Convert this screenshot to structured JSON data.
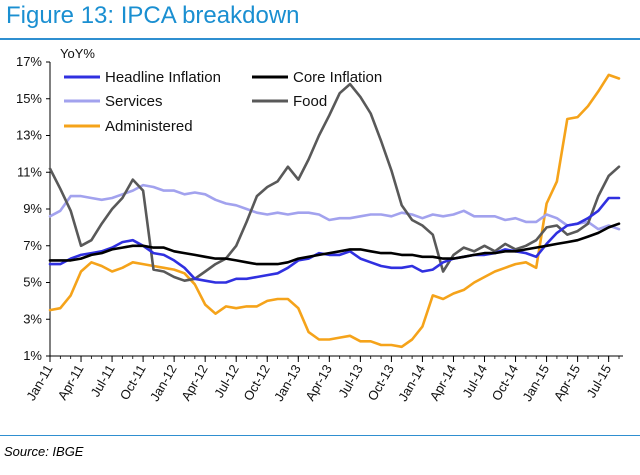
{
  "figure": {
    "title": "Figure 13: IPCA breakdown",
    "source": "Source: IBGE"
  },
  "chart_data": {
    "type": "line",
    "ylabel": "YoY%",
    "ylim": [
      1,
      17
    ],
    "yticks": [
      1,
      3,
      5,
      7,
      9,
      11,
      13,
      15,
      17
    ],
    "ytick_labels": [
      "1%",
      "3%",
      "5%",
      "7%",
      "9%",
      "11%",
      "13%",
      "15%",
      "17%"
    ],
    "x_start": "Jan-11",
    "n_months": 56,
    "x_tick_labels": [
      "Jan-11",
      "Apr-11",
      "Jul-11",
      "Oct-11",
      "Jan-12",
      "Apr-12",
      "Jul-12",
      "Oct-12",
      "Jan-13",
      "Apr-13",
      "Jul-13",
      "Oct-13",
      "Jan-14",
      "Apr-14",
      "Jul-14",
      "Oct-14",
      "Jan-15",
      "Apr-15",
      "Jul-15"
    ],
    "series": [
      {
        "name": "Headline Inflation",
        "color": "#3030e0",
        "values": [
          6.0,
          6.0,
          6.3,
          6.5,
          6.6,
          6.7,
          6.9,
          7.2,
          7.3,
          7.0,
          6.6,
          6.5,
          6.2,
          5.8,
          5.2,
          5.1,
          5.0,
          5.0,
          5.2,
          5.2,
          5.3,
          5.4,
          5.5,
          5.8,
          6.2,
          6.3,
          6.6,
          6.5,
          6.5,
          6.7,
          6.3,
          6.1,
          5.9,
          5.8,
          5.8,
          5.9,
          5.6,
          5.7,
          6.1,
          6.3,
          6.4,
          6.5,
          6.5,
          6.6,
          6.8,
          6.7,
          6.6,
          6.4,
          7.1,
          7.7,
          8.1,
          8.2,
          8.5,
          8.9,
          9.6,
          9.6
        ]
      },
      {
        "name": "Core Inflation",
        "color": "#000000",
        "values": [
          6.2,
          6.2,
          6.2,
          6.3,
          6.5,
          6.6,
          6.8,
          6.9,
          7.0,
          7.0,
          6.9,
          6.9,
          6.7,
          6.6,
          6.5,
          6.4,
          6.3,
          6.3,
          6.2,
          6.1,
          6.0,
          6.0,
          6.0,
          6.1,
          6.3,
          6.4,
          6.5,
          6.6,
          6.7,
          6.8,
          6.8,
          6.7,
          6.6,
          6.6,
          6.5,
          6.5,
          6.4,
          6.4,
          6.3,
          6.3,
          6.4,
          6.5,
          6.6,
          6.6,
          6.7,
          6.7,
          6.8,
          6.9,
          7.0,
          7.1,
          7.2,
          7.3,
          7.5,
          7.7,
          8.0,
          8.2
        ]
      },
      {
        "name": "Services",
        "color": "#a2a2ee",
        "values": [
          8.6,
          8.9,
          9.7,
          9.7,
          9.6,
          9.5,
          9.6,
          9.8,
          10.0,
          10.3,
          10.2,
          10.0,
          10.0,
          9.8,
          9.9,
          9.8,
          9.5,
          9.3,
          9.2,
          9.0,
          8.8,
          8.7,
          8.8,
          8.7,
          8.8,
          8.8,
          8.7,
          8.4,
          8.5,
          8.5,
          8.6,
          8.7,
          8.7,
          8.6,
          8.8,
          8.7,
          8.5,
          8.7,
          8.6,
          8.7,
          8.9,
          8.6,
          8.6,
          8.6,
          8.4,
          8.5,
          8.3,
          8.3,
          8.7,
          8.5,
          8.1,
          8.2,
          8.3,
          7.9,
          8.1,
          7.9
        ]
      },
      {
        "name": "Food",
        "color": "#595959",
        "values": [
          11.2,
          10.1,
          8.9,
          7.0,
          7.3,
          8.2,
          9.0,
          9.6,
          10.6,
          10.0,
          5.7,
          5.6,
          5.3,
          5.1,
          5.2,
          5.6,
          6.0,
          6.3,
          7.0,
          8.3,
          9.7,
          10.2,
          10.5,
          11.3,
          10.6,
          11.7,
          13.0,
          14.1,
          15.3,
          15.8,
          15.1,
          14.2,
          12.7,
          11.1,
          9.2,
          8.4,
          8.1,
          7.6,
          5.6,
          6.5,
          6.9,
          6.7,
          7.0,
          6.7,
          7.1,
          6.8,
          7.0,
          7.3,
          8.0,
          8.1,
          7.6,
          7.8,
          8.2,
          9.7,
          10.8,
          11.3
        ]
      },
      {
        "name": "Administered",
        "color": "#f5a31a",
        "values": [
          3.5,
          3.6,
          4.3,
          5.6,
          6.1,
          5.9,
          5.6,
          5.8,
          6.1,
          6.0,
          5.9,
          5.8,
          5.7,
          5.5,
          4.9,
          3.8,
          3.3,
          3.7,
          3.6,
          3.7,
          3.7,
          4.0,
          4.1,
          4.1,
          3.6,
          2.3,
          1.9,
          1.9,
          2.0,
          2.1,
          1.8,
          1.8,
          1.6,
          1.6,
          1.5,
          1.9,
          2.6,
          4.3,
          4.1,
          4.4,
          4.6,
          5.0,
          5.3,
          5.6,
          5.8,
          6.0,
          6.1,
          5.8,
          9.3,
          10.5,
          13.9,
          14.0,
          14.6,
          15.4,
          16.3,
          16.1
        ]
      }
    ],
    "legend": [
      "Headline Inflation",
      "Core Inflation",
      "Services",
      "Food",
      "Administered"
    ],
    "legend_location": "top-left"
  }
}
